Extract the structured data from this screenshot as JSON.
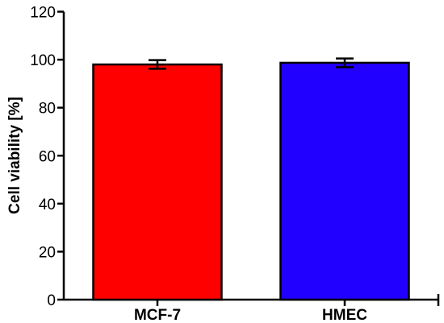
{
  "chart_data": {
    "type": "bar",
    "title": "",
    "xlabel": "",
    "ylabel": "Cell viability [%]",
    "ylim": [
      0,
      120
    ],
    "yticks": [
      0,
      20,
      40,
      60,
      80,
      100,
      120
    ],
    "categories": [
      "MCF-7",
      "HMEC"
    ],
    "values": [
      98,
      98.7
    ],
    "errors": [
      1.8,
      1.8
    ],
    "colors": [
      "#ff0000",
      "#2200ff"
    ],
    "grid": false,
    "legend": "none"
  }
}
